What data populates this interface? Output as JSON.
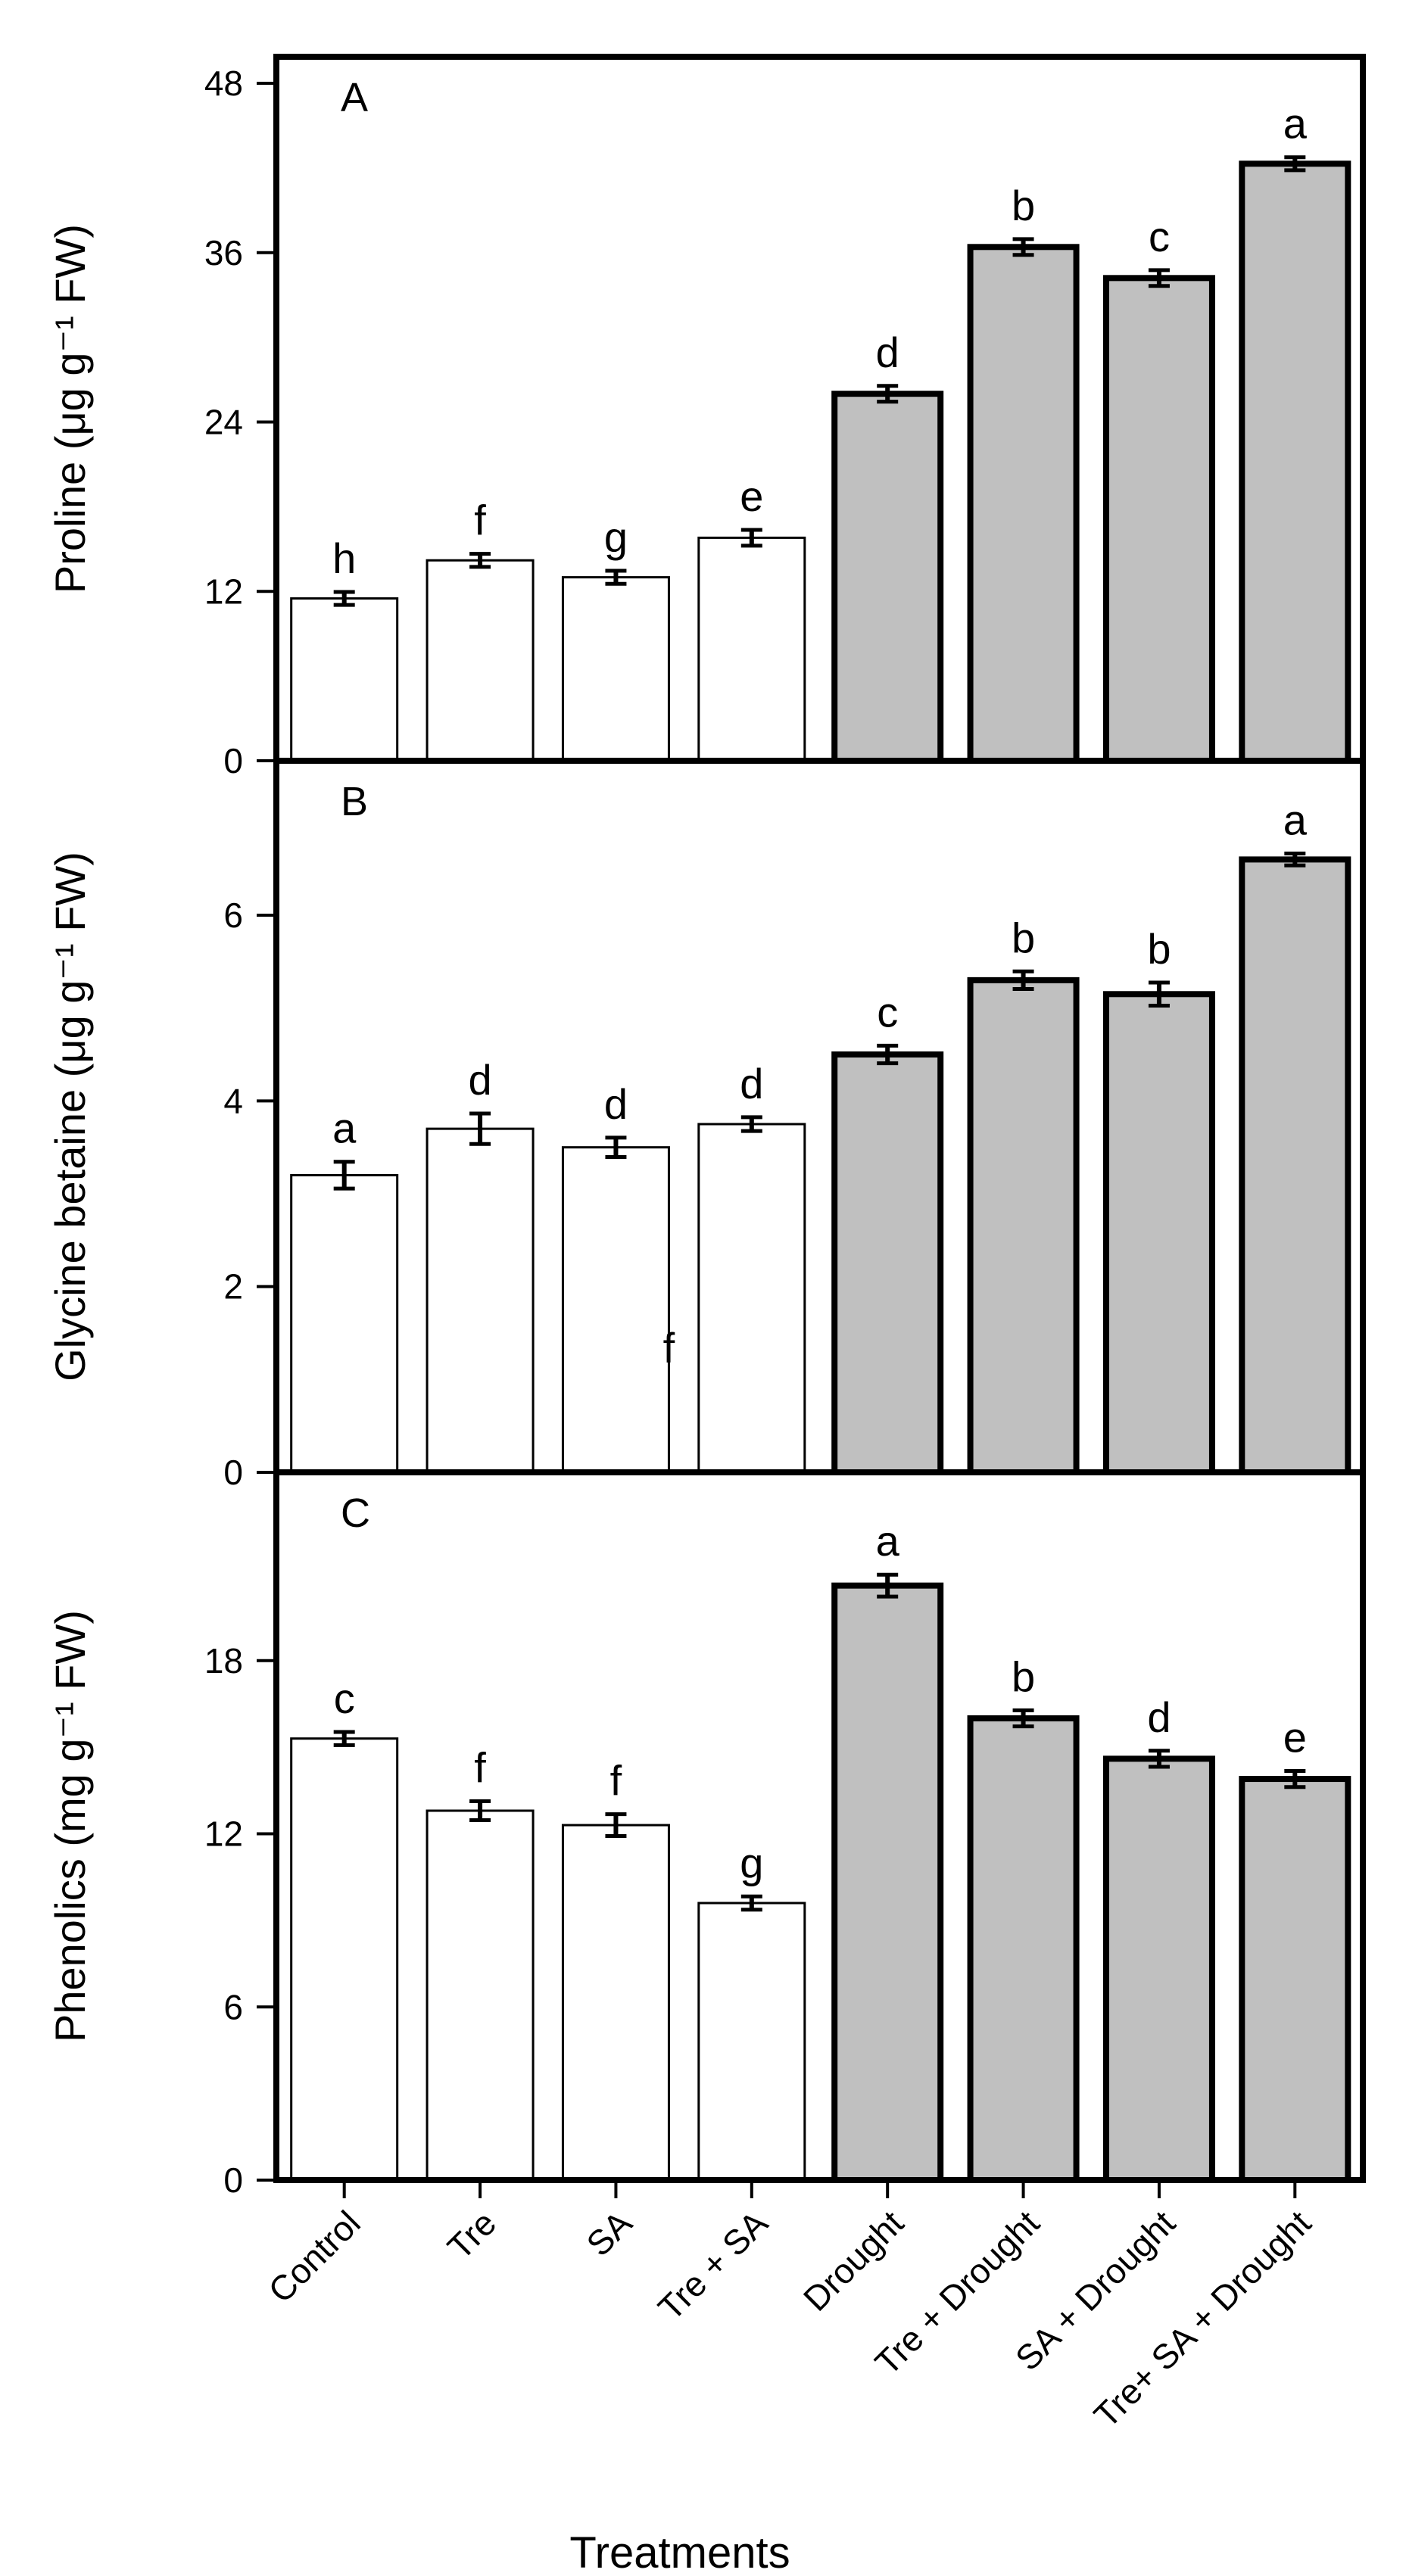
{
  "chart_data": {
    "type": "bar",
    "xlabel": "Treatments",
    "categories": [
      "Control",
      "Tre",
      "SA",
      "Tre + SA",
      "Drought",
      "Tre + Drought",
      "SA + Drought",
      "Tre+ SA + Drought"
    ],
    "bar_colors": [
      "#ffffff",
      "#ffffff",
      "#ffffff",
      "#ffffff",
      "#c0c0c0",
      "#c0c0c0",
      "#c0c0c0",
      "#c0c0c0"
    ],
    "panels": [
      {
        "letter": "A",
        "ylabel": "Proline (μg g⁻¹ FW)",
        "ylim": [
          0,
          48
        ],
        "yticks": [
          0,
          12,
          24,
          36,
          48
        ],
        "values": [
          11.5,
          14.2,
          13.0,
          15.8,
          26.0,
          36.4,
          34.2,
          42.3
        ],
        "errors": [
          0.3,
          0.3,
          0.3,
          0.4,
          0.4,
          0.4,
          0.4,
          0.3
        ],
        "letters": [
          "h",
          "f",
          "g",
          "e",
          "d",
          "b",
          "c",
          "a"
        ]
      },
      {
        "letter": "B",
        "ylabel": "Glycine betaine (μg g⁻¹ FW)",
        "ylim": [
          0,
          7.5
        ],
        "yticks": [
          0,
          2,
          4,
          6
        ],
        "values": [
          3.2,
          3.7,
          3.5,
          3.75,
          4.5,
          5.3,
          5.15,
          6.6
        ],
        "errors": [
          0.12,
          0.14,
          0.08,
          0.05,
          0.07,
          0.07,
          0.1,
          0.04
        ],
        "letters": [
          "a",
          "d",
          "d",
          "d",
          "c",
          "b",
          "b",
          "a"
        ],
        "stray_text": "f"
      },
      {
        "letter": "C",
        "ylabel": "Phenolics (mg g⁻¹ FW)",
        "ylim": [
          0,
          24
        ],
        "yticks": [
          0,
          6,
          12,
          18
        ],
        "values": [
          15.3,
          12.8,
          12.3,
          9.6,
          20.6,
          16.0,
          14.6,
          13.9
        ],
        "errors": [
          0.15,
          0.25,
          0.3,
          0.15,
          0.3,
          0.2,
          0.2,
          0.2
        ],
        "letters": [
          "c",
          "f",
          "f",
          "g",
          "a",
          "b",
          "d",
          "e"
        ]
      }
    ]
  }
}
